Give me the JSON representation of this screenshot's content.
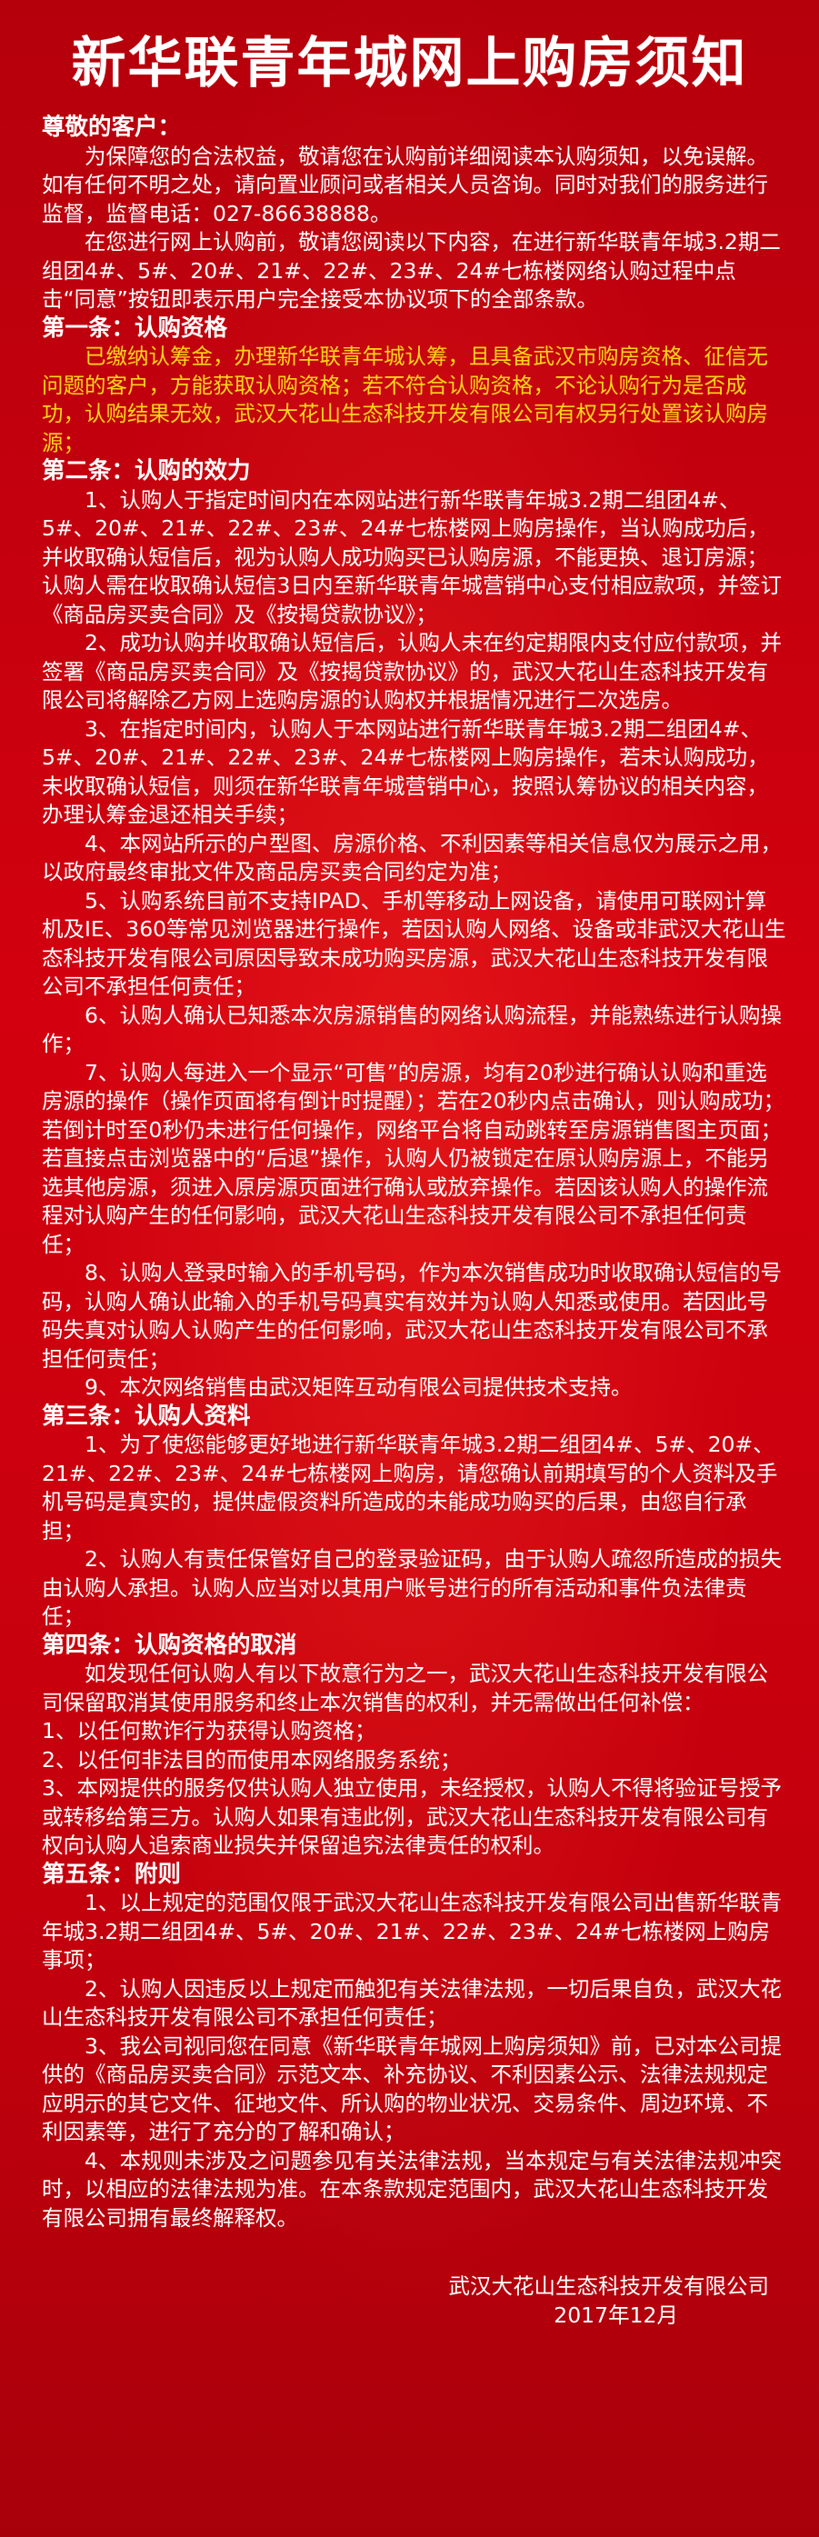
{
  "title": "新华联青年城网上购房须知",
  "greeting": "尊敬的客户：",
  "intro": [
    "为保障您的合法权益，敬请您在认购前详细阅读本认购须知，以免误解。如有任何不明之处，请向置业顾问或者相关人员咨询。同时对我们的服务进行监督，监督电话：027-86638888。",
    "在您进行网上认购前，敬请您阅读以下内容，在进行新华联青年城3.2期二组团4#、5#、20#、21#、22#、23#、24#七栋楼网络认购过程中点击“同意”按钮即表示用户完全接受本协议项下的全部条款。"
  ],
  "section1": {
    "heading": "第一条：认购资格",
    "text": "已缴纳认筹金，办理新华联青年城认筹，且具备武汉市购房资格、征信无问题的客户，方能获取认购资格；若不符合认购资格，不论认购行为是否成功，认购结果无效，武汉大花山生态科技开发有限公司有权另行处置该认购房源；"
  },
  "section2": {
    "heading": "第二条：认购的效力",
    "items": [
      "1、认购人于指定时间内在本网站进行新华联青年城3.2期二组团4#、5#、20#、21#、22#、23#、24#七栋楼网上购房操作，当认购成功后，并收取确认短信后，视为认购人成功购买已认购房源，不能更换、退订房源；认购人需在收取确认短信3日内至新华联青年城营销中心支付相应款项，并签订《商品房买卖合同》及《按揭贷款协议》；",
      "2、成功认购并收取确认短信后，认购人未在约定期限内支付应付款项，并签署《商品房买卖合同》及《按揭贷款协议》的，武汉大花山生态科技开发有限公司将解除乙方网上选购房源的认购权并根据情况进行二次选房。",
      "3、在指定时间内，认购人于本网站进行新华联青年城3.2期二组团4#、5#、20#、21#、22#、23#、24#七栋楼网上购房操作，若未认购成功，未收取确认短信，则须在新华联青年城营销中心，按照认筹协议的相关内容，办理认筹金退还相关手续；",
      "4、本网站所示的户型图、房源价格、不利因素等相关信息仅为展示之用，以政府最终审批文件及商品房买卖合同约定为准；",
      "5、认购系统目前不支持IPAD、手机等移动上网设备，请使用可联网计算机及IE、360等常见浏览器进行操作，若因认购人网络、设备或非武汉大花山生态科技开发有限公司原因导致未成功购买房源，武汉大花山生态科技开发有限公司不承担任何责任；",
      "6、认购人确认已知悉本次房源销售的网络认购流程，并能熟练进行认购操作；",
      "7、认购人每进入一个显示“可售”的房源，均有20秒进行确认认购和重选房源的操作（操作页面将有倒计时提醒）；若在20秒内点击确认，则认购成功；若倒计时至0秒仍未进行任何操作，网络平台将自动跳转至房源销售图主页面；若直接点击浏览器中的“后退”操作，认购人仍被锁定在原认购房源上，不能另选其他房源，须进入原房源页面进行确认或放弃操作。若因该认购人的操作流程对认购产生的任何影响，武汉大花山生态科技开发有限公司不承担任何责任；",
      "8、认购人登录时输入的手机号码，作为本次销售成功时收取确认短信的号码，认购人确认此输入的手机号码真实有效并为认购人知悉或使用。若因此号码失真对认购人认购产生的任何影响，武汉大花山生态科技开发有限公司不承担任何责任；",
      "9、本次网络销售由武汉矩阵互动有限公司提供技术支持。"
    ]
  },
  "section3": {
    "heading": "第三条：认购人资料",
    "items": [
      "1、为了使您能够更好地进行新华联青年城3.2期二组团4#、5#、20#、21#、22#、23#、24#七栋楼网上购房，请您确认前期填写的个人资料及手机号码是真实的，提供虚假资料所造成的未能成功购买的后果，由您自行承担；",
      "2、认购人有责任保管好自己的登录验证码，由于认购人疏忽所造成的损失由认购人承担。认购人应当对以其用户账号进行的所有活动和事件负法律责任；"
    ]
  },
  "section4": {
    "heading": "第四条：认购资格的取消",
    "intro": "如发现任何认购人有以下故意行为之一，武汉大花山生态科技开发有限公司保留取消其使用服务和终止本次销售的权利，并无需做出任何补偿：",
    "items": [
      "1、以任何欺诈行为获得认购资格；",
      "2、以任何非法目的而使用本网络服务系统；",
      "3、本网提供的服务仅供认购人独立使用，未经授权，认购人不得将验证号授予或转移给第三方。认购人如果有违此例，武汉大花山生态科技开发有限公司有权向认购人追索商业损失并保留追究法律责任的权利。"
    ]
  },
  "section5": {
    "heading": "第五条：附则",
    "items": [
      "1、以上规定的范围仅限于武汉大花山生态科技开发有限公司出售新华联青年城3.2期二组团4#、5#、20#、21#、22#、23#、24#七栋楼网上购房事项；",
      "2、认购人因违反以上规定而触犯有关法律法规，一切后果自负，武汉大花山生态科技开发有限公司不承担任何责任；",
      "3、我公司视同您在同意《新华联青年城网上购房须知》前，已对本公司提供的《商品房买卖合同》示范文本、补充协议、不利因素公示、法律法规规定应明示的其它文件、征地文件、所认购的物业状况、交易条件、周边环境、不利因素等，进行了充分的了解和确认；",
      "4、本规则未涉及之问题参见有关法律法规，当本规定与有关法律法规冲突时，以相应的法律法规为准。在本条款规定范围内，武汉大花山生态科技开发有限公司拥有最终解释权。"
    ]
  },
  "footer": {
    "company": "武汉大花山生态科技开发有限公司",
    "date": "2017年12月"
  }
}
